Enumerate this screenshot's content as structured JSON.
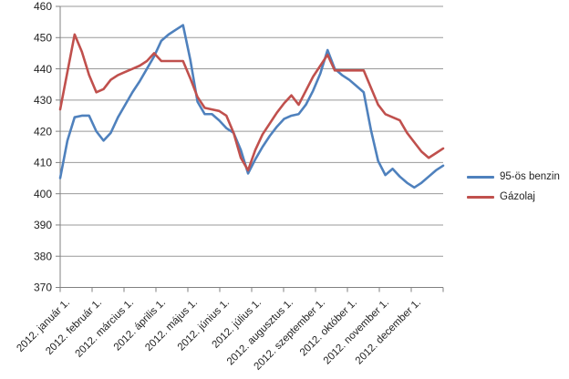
{
  "chart_data": {
    "type": "line",
    "title": "",
    "x_axis": {
      "tick_labels": [
        "2012. január 1.",
        "2012. február 1.",
        "2012. március 1.",
        "2012. április 1.",
        "2012. május 1.",
        "2012. június 1.",
        "2012. július 1.",
        "2012. augusztus 1.",
        "2012. szeptember 1.",
        "2012. október 1.",
        "2012. november 1.",
        "2012. december 1."
      ]
    },
    "y_axis": {
      "min": 370,
      "max": 460,
      "step": 10,
      "tick_labels": [
        "370",
        "380",
        "390",
        "400",
        "410",
        "420",
        "430",
        "440",
        "450",
        "460"
      ]
    },
    "grid": true,
    "legend_position": "right",
    "colors": {
      "gridline": "#999999",
      "axis": "#808080",
      "text": "#1f1f1f"
    },
    "series": [
      {
        "name": "95-ös benzin",
        "color": "#4F81BD",
        "values": [
          405,
          417,
          424.5,
          425,
          425,
          420,
          417,
          419.5,
          424.5,
          428.5,
          432.5,
          436,
          440,
          444,
          449,
          451,
          452.5,
          454,
          443,
          429.5,
          425.5,
          425.5,
          423.5,
          421,
          419.5,
          414,
          406.5,
          411,
          415,
          418.5,
          421.5,
          424,
          425,
          425.5,
          428.5,
          433,
          438.5,
          446,
          440,
          438,
          436.5,
          434.5,
          432.5,
          420.5,
          410.5,
          406,
          408,
          405.5,
          403.5,
          402,
          403.5,
          405.5,
          407.5,
          409
        ]
      },
      {
        "name": "Gázolaj",
        "color": "#C0504D",
        "values": [
          427,
          439,
          451,
          445.5,
          438,
          432.5,
          433.5,
          436.5,
          438,
          439,
          440,
          441,
          442.5,
          445,
          442.5,
          442.5,
          442.5,
          442.5,
          437,
          431,
          427.5,
          427,
          426.5,
          425,
          419.5,
          411.5,
          407.5,
          414,
          419,
          422.5,
          426,
          429,
          431.5,
          428.5,
          433,
          437.5,
          441,
          444.5,
          439.5,
          439.5,
          439.5,
          439.5,
          439.5,
          434,
          428.5,
          425.5,
          424.5,
          423.5,
          419.5,
          416.5,
          413.5,
          411.5,
          413,
          414.5
        ]
      }
    ]
  }
}
